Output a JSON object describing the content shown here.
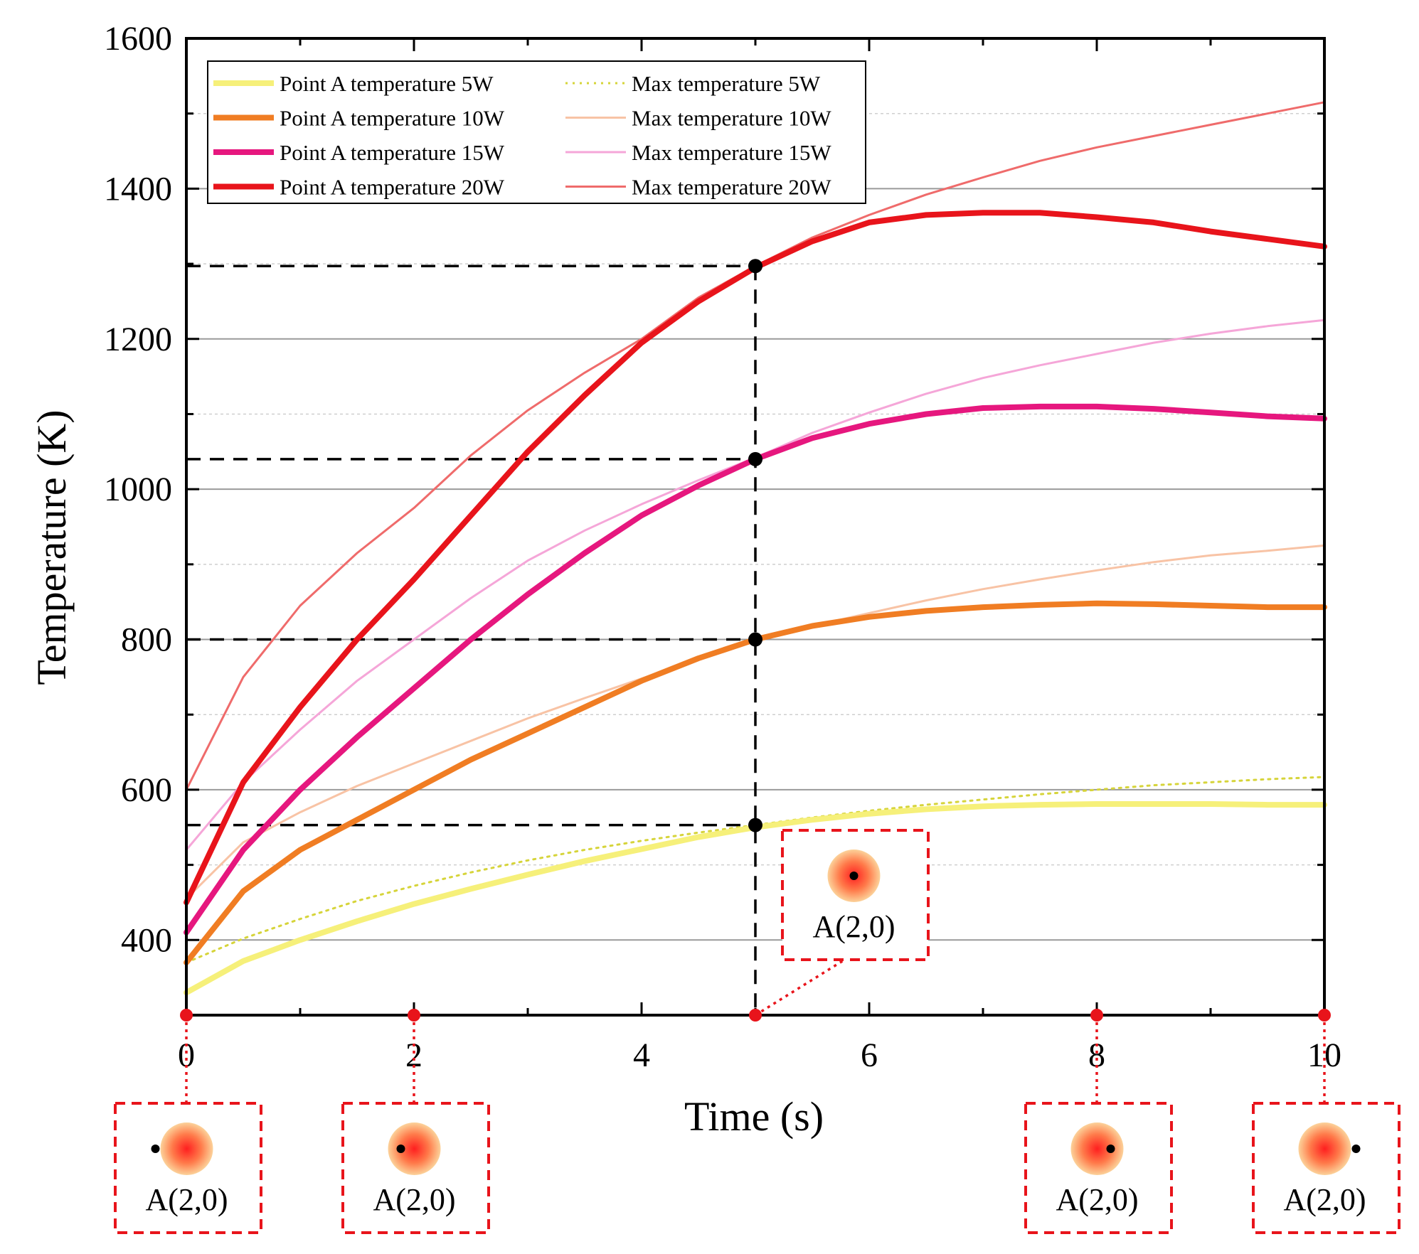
{
  "chart_data": {
    "type": "line",
    "xlabel": "Time (s)",
    "ylabel": "Temperature (K)",
    "xlim": [
      0,
      10
    ],
    "ylim": [
      300,
      1600
    ],
    "x_ticks": [
      0,
      2,
      4,
      6,
      8,
      10
    ],
    "x_tick_labels": [
      "0",
      "2",
      "4",
      "6",
      "8",
      "10"
    ],
    "y_ticks": [
      400,
      600,
      800,
      1000,
      1200,
      1400,
      1600
    ],
    "y_tick_labels": [
      "400",
      "600",
      "800",
      "1000",
      "1200",
      "1400",
      "1600"
    ],
    "grid": true,
    "legend_position": "top-left",
    "series": [
      {
        "name": "Point A temperature 5W",
        "color": "#f6f07a",
        "style": "solid-thick",
        "x": [
          0,
          0.5,
          1,
          1.5,
          2,
          2.5,
          3,
          3.5,
          4,
          4.5,
          5,
          5.5,
          6,
          6.5,
          7,
          7.5,
          8,
          8.5,
          9,
          9.5,
          10
        ],
        "y": [
          330,
          372,
          400,
          425,
          448,
          468,
          487,
          505,
          521,
          537,
          550,
          560,
          568,
          574,
          578,
          580,
          581,
          581,
          581,
          580,
          580
        ]
      },
      {
        "name": "Point A temperature 10W",
        "color": "#f07d23",
        "style": "solid-thick",
        "x": [
          0,
          0.5,
          1,
          1.5,
          2,
          2.5,
          3,
          3.5,
          4,
          4.5,
          5,
          5.5,
          6,
          6.5,
          7,
          7.5,
          8,
          8.5,
          9,
          9.5,
          10
        ],
        "y": [
          370,
          465,
          520,
          560,
          600,
          640,
          675,
          710,
          745,
          775,
          800,
          818,
          830,
          838,
          843,
          846,
          848,
          847,
          845,
          843,
          843
        ]
      },
      {
        "name": "Point A temperature 15W",
        "color": "#e6177e",
        "style": "solid-thick",
        "x": [
          0,
          0.5,
          1,
          1.5,
          2,
          2.5,
          3,
          3.5,
          4,
          4.5,
          5,
          5.5,
          6,
          6.5,
          7,
          7.5,
          8,
          8.5,
          9,
          9.5,
          10
        ],
        "y": [
          410,
          520,
          600,
          670,
          735,
          800,
          860,
          915,
          965,
          1005,
          1040,
          1068,
          1087,
          1100,
          1108,
          1110,
          1110,
          1107,
          1102,
          1097,
          1094
        ]
      },
      {
        "name": "Point A temperature 20W",
        "color": "#e8141b",
        "style": "solid-thick",
        "x": [
          0,
          0.5,
          1,
          1.5,
          2,
          2.5,
          3,
          3.5,
          4,
          4.5,
          5,
          5.5,
          6,
          6.5,
          7,
          7.5,
          8,
          8.5,
          9,
          9.5,
          10
        ],
        "y": [
          450,
          610,
          710,
          800,
          880,
          965,
          1050,
          1125,
          1195,
          1250,
          1295,
          1330,
          1355,
          1365,
          1368,
          1368,
          1362,
          1355,
          1343,
          1333,
          1323
        ]
      },
      {
        "name": "Max temperature 5W",
        "color": "#d6d43a",
        "style": "dotted",
        "x": [
          0,
          0.5,
          1,
          1.5,
          2,
          2.5,
          3,
          3.5,
          4,
          4.5,
          5,
          5.5,
          6,
          6.5,
          7,
          7.5,
          8,
          8.5,
          9,
          9.5,
          10
        ],
        "y": [
          370,
          402,
          428,
          452,
          472,
          490,
          506,
          520,
          532,
          543,
          553,
          563,
          572,
          580,
          587,
          594,
          600,
          606,
          610,
          614,
          617
        ]
      },
      {
        "name": "Max temperature 10W",
        "color": "#f8c3a5",
        "style": "solid-thin",
        "x": [
          0,
          0.5,
          1,
          1.5,
          2,
          2.5,
          3,
          3.5,
          4,
          4.5,
          5,
          5.5,
          6,
          6.5,
          7,
          7.5,
          8,
          8.5,
          9,
          9.5,
          10
        ],
        "y": [
          455,
          530,
          570,
          605,
          635,
          665,
          695,
          722,
          748,
          775,
          800,
          818,
          835,
          852,
          867,
          880,
          892,
          903,
          912,
          918,
          925
        ]
      },
      {
        "name": "Max temperature 15W",
        "color": "#f5a6d8",
        "style": "solid-thin",
        "x": [
          0,
          0.5,
          1,
          1.5,
          2,
          2.5,
          3,
          3.5,
          4,
          4.5,
          5,
          5.5,
          6,
          6.5,
          7,
          7.5,
          8,
          8.5,
          9,
          9.5,
          10
        ],
        "y": [
          520,
          610,
          680,
          745,
          800,
          855,
          905,
          945,
          980,
          1012,
          1042,
          1075,
          1102,
          1127,
          1148,
          1165,
          1180,
          1195,
          1207,
          1217,
          1225
        ]
      },
      {
        "name": "Max temperature 20W",
        "color": "#ef6b6b",
        "style": "solid-thin",
        "x": [
          0,
          0.5,
          1,
          1.5,
          2,
          2.5,
          3,
          3.5,
          4,
          4.5,
          5,
          5.5,
          6,
          6.5,
          7,
          7.5,
          8,
          8.5,
          9,
          9.5,
          10
        ],
        "y": [
          600,
          750,
          845,
          915,
          975,
          1045,
          1105,
          1155,
          1200,
          1255,
          1297,
          1335,
          1365,
          1392,
          1415,
          1437,
          1455,
          1470,
          1485,
          1500,
          1515
        ]
      }
    ],
    "reference_lines": [
      {
        "x": 5,
        "y": 1297
      },
      {
        "x": 5,
        "y": 1040
      },
      {
        "x": 5,
        "y": 800
      },
      {
        "x": 5,
        "y": 553
      }
    ],
    "inset_markers": [
      {
        "x": 0,
        "label": "A(2,0)"
      },
      {
        "x": 2,
        "label": "A(2,0)"
      },
      {
        "x": 5,
        "label": "A(2,0)"
      },
      {
        "x": 8,
        "label": "A(2,0)"
      },
      {
        "x": 10,
        "label": "A(2,0)"
      }
    ]
  }
}
